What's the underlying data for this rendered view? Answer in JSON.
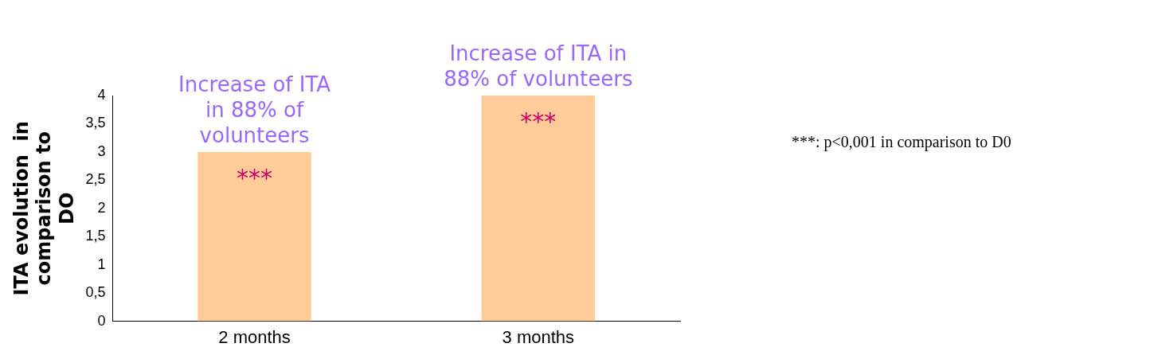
{
  "chart_data": {
    "type": "bar",
    "ylabel": "ITA evolution  in\ncomparison to\nDO",
    "categories": [
      "2 months",
      "3 months"
    ],
    "values": [
      3.0,
      4.0
    ],
    "value_labels": [
      "***",
      "***"
    ],
    "color": "#ffcc99",
    "ylim": [
      0,
      4
    ],
    "yticks": [
      0,
      {
        "value": 0.5,
        "label": "0,5"
      },
      1,
      {
        "value": 1.5,
        "label": "1,5"
      },
      2,
      {
        "value": 2.5,
        "label": "2,5"
      },
      3,
      {
        "value": 3.5,
        "label": "3,5"
      },
      4
    ],
    "grid": false,
    "legend": false,
    "annotations": [
      {
        "text": "Increase of ITA\nin 88% of\nvolunteers",
        "x": "2 months",
        "y": 3.0
      },
      {
        "text": "Increase of ITA in\n88% of volunteers",
        "x": "3 months",
        "y": 4.0
      },
      "***: p<0,001 in comparison to D0"
    ]
  }
}
